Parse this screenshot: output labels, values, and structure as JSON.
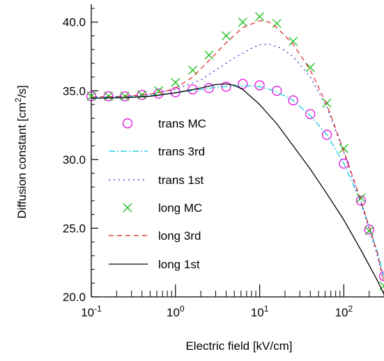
{
  "chart_data": {
    "type": "line",
    "xlabel": "Electric field  [kV/cm]",
    "ylabel_main": "Diffusion constant  [cm",
    "ylabel_sup": "2",
    "ylabel_tail": "/s]",
    "x_scale": "log",
    "xlim": [
      0.1,
      300
    ],
    "ylim": [
      20.0,
      41.0
    ],
    "grid": false,
    "legend_position": "center-left",
    "y_ticks": [
      {
        "value": 20,
        "label": "20.0"
      },
      {
        "value": 25,
        "label": "25.0"
      },
      {
        "value": 30,
        "label": "30.0"
      },
      {
        "value": 35,
        "label": "35.0"
      },
      {
        "value": 40,
        "label": "40.0"
      }
    ],
    "x_ticks": [
      {
        "value": 0.1,
        "base": "10",
        "exp": "-1"
      },
      {
        "value": 1,
        "base": "10",
        "exp": "0"
      },
      {
        "value": 10,
        "base": "10",
        "exp": "1"
      },
      {
        "value": 100,
        "base": "10",
        "exp": "2"
      }
    ],
    "series": [
      {
        "name": "trans MC",
        "style": "marker-circle",
        "color": "#e020e0",
        "x": [
          0.1,
          0.16,
          0.25,
          0.4,
          0.63,
          1.0,
          1.6,
          2.5,
          4.0,
          6.3,
          10,
          16,
          25,
          40,
          63,
          100,
          160,
          200,
          300
        ],
        "y": [
          34.6,
          34.6,
          34.6,
          34.7,
          34.8,
          34.9,
          35.1,
          35.2,
          35.3,
          35.5,
          35.4,
          35.0,
          34.3,
          33.3,
          31.8,
          29.7,
          27.0,
          24.9,
          21.5
        ]
      },
      {
        "name": "trans 3rd",
        "style": "dash-dot",
        "color": "#00c8e0",
        "x": [
          0.1,
          0.25,
          0.5,
          1.0,
          2.0,
          3.0,
          5.0,
          8.0,
          10,
          15,
          25,
          40,
          63,
          100,
          160,
          250,
          300
        ],
        "y": [
          34.5,
          34.55,
          34.65,
          34.85,
          35.1,
          35.25,
          35.35,
          35.35,
          35.3,
          35.0,
          34.3,
          33.2,
          31.8,
          29.7,
          26.9,
          23.3,
          21.5
        ]
      },
      {
        "name": "trans 1st",
        "style": "dotted",
        "color": "#2020d0",
        "x": [
          0.1,
          0.25,
          0.5,
          1.0,
          2.0,
          3.0,
          5.0,
          8.0,
          10,
          13,
          18,
          25,
          40,
          63,
          100,
          160,
          250,
          300
        ],
        "y": [
          34.55,
          34.6,
          34.75,
          35.1,
          35.8,
          36.5,
          37.4,
          38.1,
          38.35,
          38.4,
          38.1,
          37.5,
          36.0,
          33.8,
          30.5,
          26.8,
          23.0,
          21.0
        ]
      },
      {
        "name": "long MC",
        "style": "marker-x",
        "color": "#20c020",
        "x": [
          0.1,
          0.16,
          0.25,
          0.4,
          0.63,
          1.0,
          1.6,
          2.5,
          4.0,
          6.3,
          10,
          16,
          25,
          40,
          63,
          100,
          160,
          200,
          300
        ],
        "y": [
          34.6,
          34.6,
          34.6,
          34.7,
          35.0,
          35.6,
          36.5,
          37.6,
          39.0,
          40.0,
          40.4,
          39.9,
          38.6,
          36.7,
          34.1,
          30.8,
          27.2,
          24.8,
          20.8
        ]
      },
      {
        "name": "long 3rd",
        "style": "dashed",
        "color": "#e02020",
        "x": [
          0.1,
          0.25,
          0.5,
          0.8,
          1.0,
          1.6,
          2.5,
          4.0,
          6.3,
          10,
          13,
          16,
          25,
          40,
          63,
          100,
          160,
          250,
          300
        ],
        "y": [
          34.55,
          34.6,
          34.75,
          35.0,
          35.2,
          36.0,
          37.2,
          38.5,
          39.6,
          40.1,
          40.0,
          39.6,
          38.4,
          36.5,
          34.0,
          30.6,
          27.0,
          23.2,
          21.0
        ]
      },
      {
        "name": "long 1st",
        "style": "solid",
        "color": "#000000",
        "x": [
          0.1,
          0.25,
          0.5,
          1.0,
          2.0,
          3.0,
          4.0,
          5.0,
          6.3,
          10,
          16,
          25,
          40,
          63,
          100,
          160,
          250,
          300
        ],
        "y": [
          34.45,
          34.5,
          34.6,
          34.85,
          35.2,
          35.45,
          35.5,
          35.4,
          35.1,
          34.0,
          32.6,
          31.0,
          29.3,
          27.5,
          25.6,
          23.4,
          21.2,
          20.2
        ]
      }
    ]
  }
}
